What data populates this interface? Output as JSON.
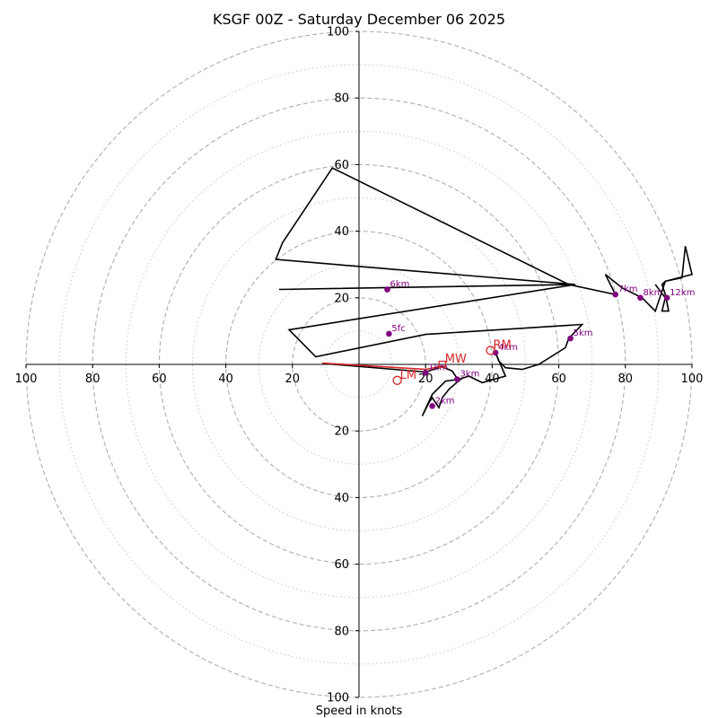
{
  "chart_data": {
    "type": "hodograph",
    "title": "KSGF 00Z - Saturday December 06 2025",
    "xlabel": "Speed in knots",
    "range": [
      -100,
      100
    ],
    "major_rings": [
      20,
      40,
      60,
      80,
      100
    ],
    "minor_rings": [
      10,
      30,
      50,
      70,
      90
    ],
    "x_tick_labels": [
      "100",
      "80",
      "60",
      "40",
      "20",
      "20",
      "40",
      "60",
      "80",
      "100"
    ],
    "x_tick_values": [
      -100,
      -80,
      -60,
      -40,
      -20,
      20,
      40,
      60,
      80,
      100
    ],
    "y_tick_labels": [
      "100",
      "80",
      "60",
      "40",
      "20",
      "20",
      "40",
      "60",
      "80",
      "100"
    ],
    "y_tick_values": [
      100,
      80,
      60,
      40,
      20,
      -20,
      -40,
      -60,
      -80,
      -100
    ],
    "hodograph_line": {
      "color": "#000000",
      "points": [
        [
          -11,
          0.3
        ],
        [
          20,
          -2.3
        ],
        [
          25,
          -0.7
        ],
        [
          28,
          -2
        ],
        [
          30,
          -5
        ],
        [
          31,
          -4
        ],
        [
          27,
          -7.5
        ],
        [
          25,
          -10
        ],
        [
          24,
          -13
        ],
        [
          22,
          -10
        ],
        [
          21,
          -11.5
        ],
        [
          19,
          -15.5
        ],
        [
          22,
          -9
        ],
        [
          26,
          -5
        ],
        [
          30,
          -4.5
        ],
        [
          33,
          -3.5
        ],
        [
          37,
          -5.5
        ],
        [
          44,
          -3.5
        ],
        [
          41,
          3.5
        ],
        [
          42,
          1
        ],
        [
          44,
          -1
        ],
        [
          49,
          -1.5
        ],
        [
          54,
          0
        ],
        [
          62,
          5
        ],
        [
          63,
          7.8
        ],
        [
          67,
          12
        ],
        [
          20,
          9
        ],
        [
          -13,
          2.3
        ],
        [
          -21,
          10.4
        ],
        [
          65,
          24
        ],
        [
          -24,
          22.5
        ],
        [
          65,
          24
        ],
        [
          -25,
          31.5
        ],
        [
          -23,
          36.5
        ],
        [
          -8,
          59
        ],
        [
          63,
          24
        ],
        [
          77,
          21
        ],
        [
          74,
          27
        ],
        [
          79,
          23
        ],
        [
          85,
          20
        ],
        [
          89,
          16
        ],
        [
          92,
          25
        ],
        [
          97,
          26
        ],
        [
          98,
          35.5
        ],
        [
          100,
          27
        ],
        [
          92,
          25
        ],
        [
          91,
          24
        ],
        [
          92,
          21
        ],
        [
          93,
          16
        ],
        [
          91,
          16
        ],
        [
          92,
          20
        ],
        [
          89,
          24
        ]
      ]
    },
    "mean_wind_line": {
      "color": "#d62728",
      "points": [
        [
          -11,
          0.4
        ],
        [
          20,
          -1.5
        ],
        [
          25,
          -0.5
        ]
      ]
    },
    "height_markers": [
      {
        "label": "1km",
        "u": 20,
        "v": -2.5
      },
      {
        "label": "2km",
        "u": 22,
        "v": -12.5
      },
      {
        "label": "3km",
        "u": 29.5,
        "v": -4.5
      },
      {
        "label": "4km",
        "u": 41,
        "v": 3.5
      },
      {
        "label": "5km",
        "u": 63.5,
        "v": 7.8
      },
      {
        "label": "5fc",
        "u": 9,
        "v": 9.2
      },
      {
        "label": "6km",
        "u": 8.5,
        "v": 22.5
      },
      {
        "label": "7km",
        "u": 77,
        "v": 21
      },
      {
        "label": "8km",
        "u": 84.5,
        "v": 20
      },
      {
        "label": "12km",
        "u": 92.5,
        "v": 20
      }
    ],
    "motion_markers": [
      {
        "label": "RM",
        "u": 39.5,
        "v": 4.2
      },
      {
        "label": "MW",
        "u": 25,
        "v": 0
      },
      {
        "label": "LM",
        "u": 11.5,
        "v": -4.8
      }
    ]
  }
}
